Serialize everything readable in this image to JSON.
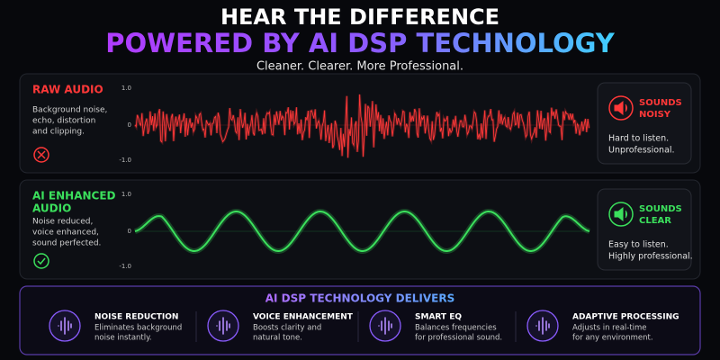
{
  "header": {
    "title": "HEAR THE DIFFERENCE",
    "subtitle": "POWERED BY AI DSP TECHNOLOGY",
    "tagline": "Cleaner. Clearer. More Professional."
  },
  "panels": [
    {
      "label": [
        "RAW AUDIO"
      ],
      "description": [
        "Background noise,",
        "echo, distortion",
        "and clipping."
      ],
      "axis_ticks": [
        "1.0",
        "0",
        "-1.0"
      ],
      "result": {
        "heading": [
          "SOUNDS",
          "NOISY"
        ],
        "text": [
          "Hard to listen.",
          "Unprofessional."
        ]
      }
    },
    {
      "label": [
        "AI ENHANCED",
        "AUDIO"
      ],
      "description": [
        "Noise reduced,",
        "voice enhanced,",
        "sound perfected."
      ],
      "axis_ticks": [
        "1.0",
        "0",
        "-1.0"
      ],
      "result": {
        "heading": [
          "SOUNDS",
          "CLEAR"
        ],
        "text": [
          "Easy to listen.",
          "Highly professional."
        ]
      }
    }
  ],
  "features": {
    "title": "AI DSP TECHNOLOGY DELIVERS",
    "items": [
      {
        "title": "NOISE REDUCTION",
        "text": [
          "Eliminates background",
          "noise instantly."
        ]
      },
      {
        "title": "VOICE ENHANCEMENT",
        "text": [
          "Boosts clarity and",
          "natural tone."
        ]
      },
      {
        "title": "SMART EQ",
        "text": [
          "Balances frequencies",
          "for professional sound."
        ]
      },
      {
        "title": "ADAPTIVE PROCESSING",
        "text": [
          "Adjusts in real-time",
          "for any environment."
        ]
      }
    ]
  }
}
